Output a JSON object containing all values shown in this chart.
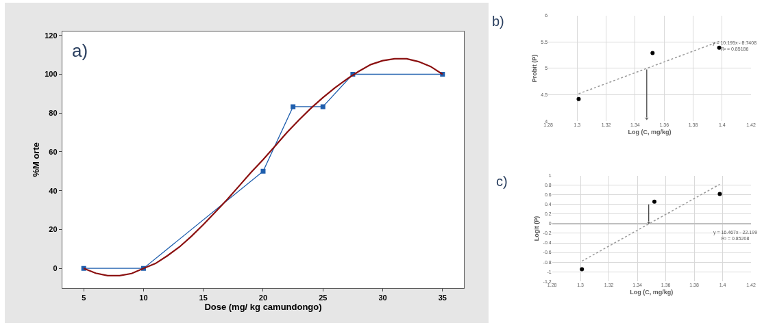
{
  "chart_data": [
    {
      "type": "line",
      "xlabel": "Dose (mg/ kg camundongo)",
      "ylabel": "%M orte",
      "annotations": [
        "a)"
      ],
      "xlim": [
        3.2,
        36.8
      ],
      "ylim": [
        -10,
        122
      ],
      "xticks": [
        5,
        10,
        15,
        20,
        25,
        30,
        35
      ],
      "yticks": [
        0,
        20,
        40,
        60,
        80,
        100,
        120
      ],
      "grid": false,
      "series": [
        {
          "color": "#1f5fae",
          "marker": "square",
          "x": [
            5,
            10,
            20,
            22.5,
            25,
            27.5,
            35
          ],
          "values": [
            0,
            0,
            50,
            83.3,
            83.3,
            100,
            100
          ]
        },
        {
          "color": "#8b1010",
          "marker": "none",
          "x": [
            5,
            6,
            7,
            8,
            9,
            10,
            11,
            12,
            13,
            14,
            15,
            16,
            17,
            18,
            19,
            20,
            21,
            22,
            23,
            24,
            25,
            26,
            27,
            28,
            29,
            30,
            31,
            32,
            33,
            34,
            35
          ],
          "values": [
            0,
            -2.5,
            -3.8,
            -3.8,
            -2.7,
            0,
            2.5,
            6.5,
            11,
            16.5,
            22.5,
            29,
            35.5,
            42.5,
            49.5,
            56,
            63,
            70,
            76.5,
            82.5,
            88,
            93,
            97.5,
            101.5,
            105,
            107,
            108,
            108,
            106.5,
            104,
            100
          ]
        }
      ]
    },
    {
      "type": "scatter",
      "xlabel": "Log (C, mg/kg)",
      "ylabel": "Probit (P)",
      "annotations": [
        "b)",
        "y = 10.195x - 8.7408\nR² = 0.85186"
      ],
      "xlim": [
        1.28,
        1.42
      ],
      "ylim": [
        4,
        6
      ],
      "xticks": [
        1.28,
        1.3,
        1.32,
        1.34,
        1.36,
        1.38,
        1.4,
        1.42
      ],
      "yticks": [
        4,
        4.5,
        5,
        5.5,
        6
      ],
      "grid": true,
      "series": [
        {
          "color": "#000000",
          "marker": "circle",
          "x": [
            1.301,
            1.352,
            1.398
          ],
          "values": [
            4.42,
            5.29,
            5.39
          ]
        },
        {
          "type": "line",
          "color": "#999999",
          "line_style": "dotted",
          "marker": "none",
          "x": [
            1.301,
            1.398
          ],
          "values": [
            4.52,
            5.51
          ]
        },
        {
          "type": "line",
          "marker": "triangle",
          "color": "#333333",
          "x": [
            1.348,
            1.348
          ],
          "values": [
            4.98,
            4.05
          ]
        }
      ]
    },
    {
      "type": "scatter",
      "xlabel": "Log (C, mg/kg)",
      "ylabel": "Logit (P)",
      "annotations": [
        "c)",
        "y = 16.467x - 22.199\nR² = 0.85208"
      ],
      "xlim": [
        1.28,
        1.42
      ],
      "ylim": [
        -1.2,
        1
      ],
      "xticks": [
        1.28,
        1.3,
        1.32,
        1.34,
        1.36,
        1.38,
        1.4,
        1.42
      ],
      "yticks": [
        -1.2,
        -1,
        -0.8,
        -0.6,
        -0.4,
        -0.2,
        0,
        0.2,
        0.4,
        0.6,
        0.8,
        1
      ],
      "grid": true,
      "series": [
        {
          "color": "#000000",
          "marker": "circle",
          "x": [
            1.301,
            1.352,
            1.398
          ],
          "values": [
            -0.95,
            0.46,
            0.62
          ]
        },
        {
          "type": "line",
          "color": "#999999",
          "line_style": "dotted",
          "marker": "none",
          "x": [
            1.301,
            1.398
          ],
          "values": [
            -0.78,
            0.82
          ]
        },
        {
          "type": "line",
          "marker": "triangle",
          "color": "#333333",
          "x": [
            1.348,
            1.348
          ],
          "values": [
            0.4,
            0.02
          ]
        }
      ]
    }
  ]
}
